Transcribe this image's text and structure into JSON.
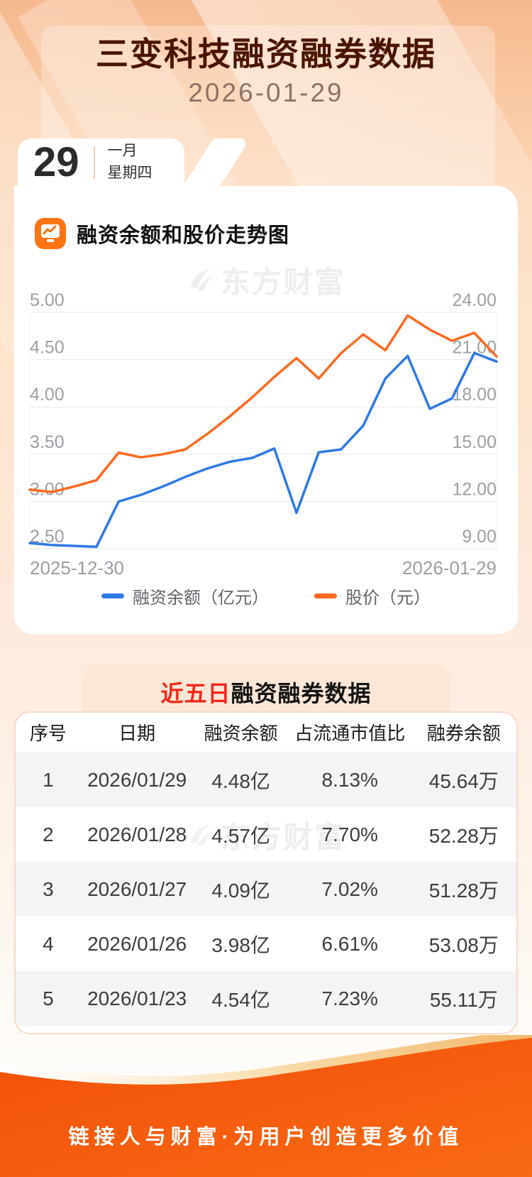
{
  "page": {
    "title": "三变科技融资融券数据",
    "date": "2026-01-29",
    "date_card": {
      "day": "29",
      "month": "一月",
      "weekday": "星期四"
    },
    "watermark": "东方财富",
    "footer": "链接人与财富·为用户创造更多价值"
  },
  "chart_section": {
    "title": "融资余额和股价走势图"
  },
  "chart_data": {
    "type": "line",
    "title": "融资余额和股价走势图",
    "x_labels": [
      "2025-12-30",
      "2026-01-29"
    ],
    "grid": true,
    "legend_position": "bottom",
    "left_axis": {
      "label": "融资余额（亿元）",
      "min": 2.5,
      "max": 5.0,
      "ticks": [
        "5.00",
        "4.50",
        "4.00",
        "3.50",
        "3.00",
        "2.50"
      ]
    },
    "right_axis": {
      "label": "股价（元）",
      "min": 9.0,
      "max": 24.0,
      "ticks": [
        "24.00",
        "21.00",
        "18.00",
        "15.00",
        "12.00",
        "9.00"
      ]
    },
    "series": [
      {
        "name": "融资余额（亿元）",
        "axis": "left",
        "color": "#2f7ae5",
        "values": [
          2.56,
          2.54,
          2.53,
          2.52,
          3.0,
          3.07,
          3.16,
          3.26,
          3.35,
          3.42,
          3.46,
          3.56,
          2.88,
          3.52,
          3.55,
          3.8,
          4.3,
          4.54,
          3.98,
          4.09,
          4.57,
          4.48
        ]
      },
      {
        "name": "股价（元）",
        "axis": "right",
        "color": "#fc6a21",
        "values": [
          12.75,
          12.6,
          12.95,
          13.35,
          15.1,
          14.8,
          15.0,
          15.3,
          16.3,
          17.4,
          18.6,
          19.9,
          21.1,
          19.8,
          21.4,
          22.6,
          21.6,
          23.8,
          22.9,
          22.2,
          22.7,
          21.2
        ]
      }
    ]
  },
  "table_section": {
    "title_highlight": "近五日",
    "title_rest": "融资融券数据",
    "headers": [
      "序号",
      "日期",
      "融资余额",
      "占流通市值比",
      "融券余额"
    ],
    "rows": [
      [
        "1",
        "2026/01/29",
        "4.48亿",
        "8.13%",
        "45.64万"
      ],
      [
        "2",
        "2026/01/28",
        "4.57亿",
        "7.70%",
        "52.28万"
      ],
      [
        "3",
        "2026/01/27",
        "4.09亿",
        "7.02%",
        "51.28万"
      ],
      [
        "4",
        "2026/01/26",
        "3.98亿",
        "6.61%",
        "53.08万"
      ],
      [
        "5",
        "2026/01/23",
        "4.54亿",
        "7.23%",
        "55.11万"
      ]
    ]
  },
  "colors": {
    "title_brown": "#4a1502",
    "chart_blue": "#2f7ae5",
    "chart_orange": "#fc6a21",
    "highlight_red": "#f3281c",
    "footer_orange": "#f4570e",
    "banner_pink": "#fbe7d7"
  }
}
